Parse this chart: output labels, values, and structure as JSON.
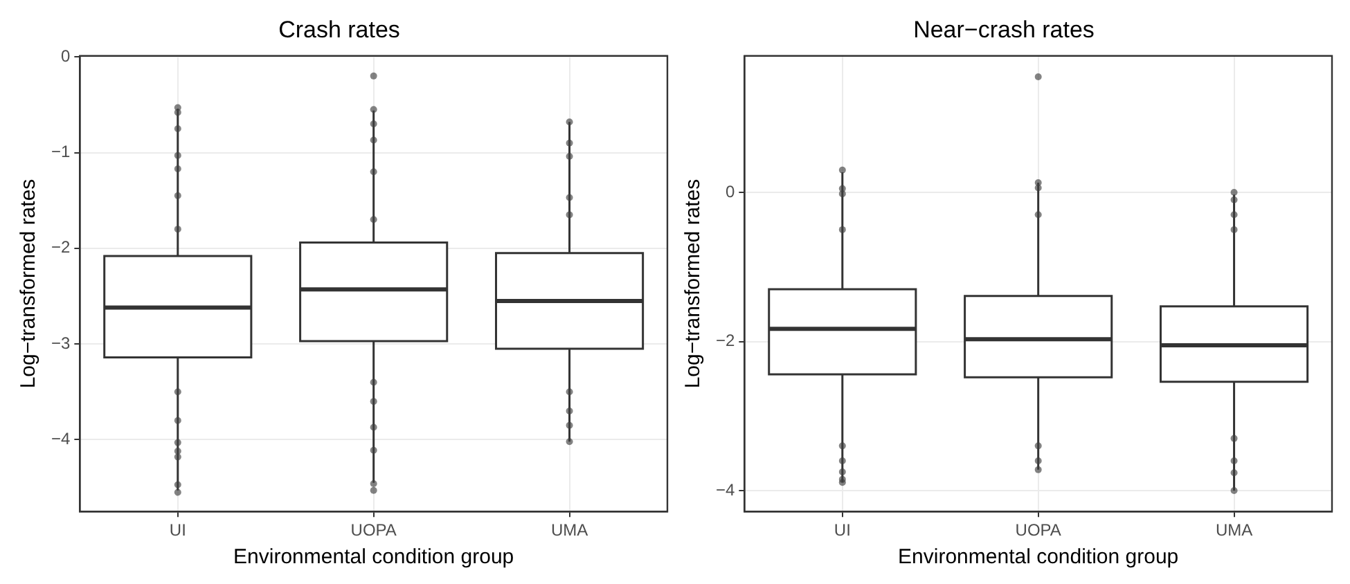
{
  "chart_data": [
    {
      "type": "box",
      "title": "Crash rates",
      "xlabel": "Environmental condition group",
      "ylabel": "Log−transformed rates",
      "categories": [
        "UI",
        "UOPA",
        "UMA"
      ],
      "ylim": [
        -4.75,
        0.01
      ],
      "yticks": [
        0,
        -1,
        -2,
        -3,
        -4
      ],
      "grid": true,
      "boxes": [
        {
          "low": -4.53,
          "q1": -3.14,
          "median": -2.62,
          "q3": -2.08,
          "high": -0.54
        },
        {
          "low": -4.45,
          "q1": -2.97,
          "median": -2.43,
          "q3": -1.94,
          "high": -0.56
        },
        {
          "low": -4.02,
          "q1": -3.05,
          "median": -2.55,
          "q3": -2.05,
          "high": -0.68
        }
      ],
      "series": [
        {
          "type": "scatter",
          "color": "#404040",
          "marker": "circle",
          "x": [
            "UI",
            "UI",
            "UI",
            "UI",
            "UI",
            "UI",
            "UI",
            "UI",
            "UI",
            "UI",
            "UI",
            "UI",
            "UI",
            "UI",
            "UOPA",
            "UOPA",
            "UOPA",
            "UOPA",
            "UOPA",
            "UOPA",
            "UOPA",
            "UOPA",
            "UOPA",
            "UOPA",
            "UOPA",
            "UOPA",
            "UOPA",
            "UMA",
            "UMA",
            "UMA",
            "UMA",
            "UMA",
            "UMA",
            "UMA",
            "UMA",
            "UMA",
            "UMA"
          ],
          "values": [
            -0.53,
            -0.58,
            -0.75,
            -1.03,
            -1.17,
            -1.45,
            -1.8,
            -3.5,
            -3.8,
            -4.03,
            -4.18,
            -4.12,
            -4.47,
            -4.55,
            -0.2,
            null,
            -0.55,
            -0.7,
            -0.87,
            -1.2,
            -1.7,
            -3.4,
            -3.6,
            -3.87,
            -4.11,
            -4.53,
            -4.46,
            -0.68,
            -0.9,
            -1.04,
            -1.47,
            -1.65,
            -3.5,
            -3.7,
            -3.85,
            null,
            -4.02
          ]
        }
      ]
    },
    {
      "type": "box",
      "title": "Near−crash rates",
      "xlabel": "Environmental condition group",
      "ylabel": "Log−transformed rates",
      "categories": [
        "UI",
        "UOPA",
        "UMA"
      ],
      "ylim": [
        -4.28,
        1.83
      ],
      "yticks": [
        0,
        -2,
        -4
      ],
      "grid": true,
      "boxes": [
        {
          "low": -3.89,
          "q1": -2.44,
          "median": -1.83,
          "q3": -1.3,
          "high": 0.27
        },
        {
          "low": -3.72,
          "q1": -2.48,
          "median": -1.97,
          "q3": -1.39,
          "high": 0.13
        },
        {
          "low": -4.0,
          "q1": -2.54,
          "median": -2.05,
          "q3": -1.53,
          "high": -0.03
        }
      ],
      "series": [
        {
          "type": "scatter",
          "color": "#404040",
          "marker": "circle",
          "x": [
            "UI",
            "UI",
            "UI",
            "UI",
            "UI",
            "UI",
            "UI",
            "UI",
            "UI",
            "UOPA",
            "UOPA",
            "UOPA",
            "UOPA",
            "UOPA",
            "UOPA",
            "UOPA",
            "UOPA",
            "UMA",
            "UMA",
            "UMA",
            "UMA",
            "UMA",
            "UMA",
            "UMA",
            "UMA"
          ],
          "values": [
            0.3,
            0.05,
            -0.02,
            -0.5,
            -3.4,
            -3.6,
            -3.75,
            -3.85,
            -3.89,
            1.55,
            0.13,
            0.06,
            -0.3,
            -3.4,
            -3.6,
            null,
            -3.72,
            0.0,
            -0.1,
            -0.3,
            -0.5,
            -3.3,
            -3.6,
            -3.76,
            -4.0
          ]
        }
      ]
    }
  ]
}
